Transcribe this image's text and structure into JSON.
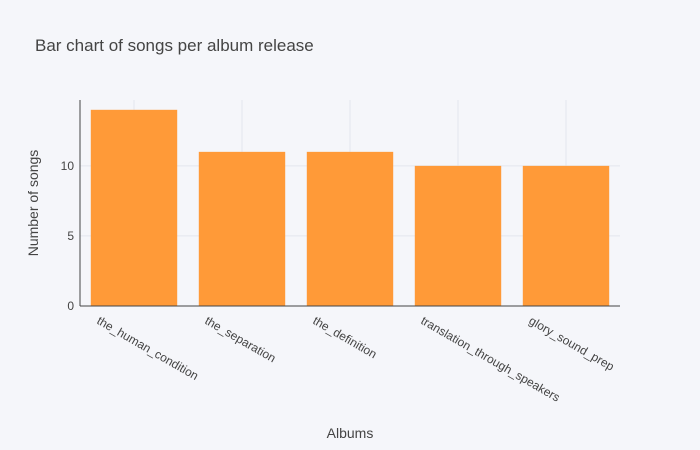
{
  "chart_data": {
    "type": "bar",
    "title": "Bar chart of songs per album release",
    "xlabel": "Albums",
    "ylabel": "Number of songs",
    "categories": [
      "the_human_condition",
      "the_separation",
      "the_definition",
      "translation_through_speakers",
      "glory_sound_prep"
    ],
    "values": [
      14,
      11,
      11,
      10,
      10
    ],
    "ylim": [
      0,
      14.7
    ],
    "yticks": [
      0,
      5,
      10
    ],
    "grid": true,
    "legend": "none",
    "bar_color": "#ff9a38"
  }
}
